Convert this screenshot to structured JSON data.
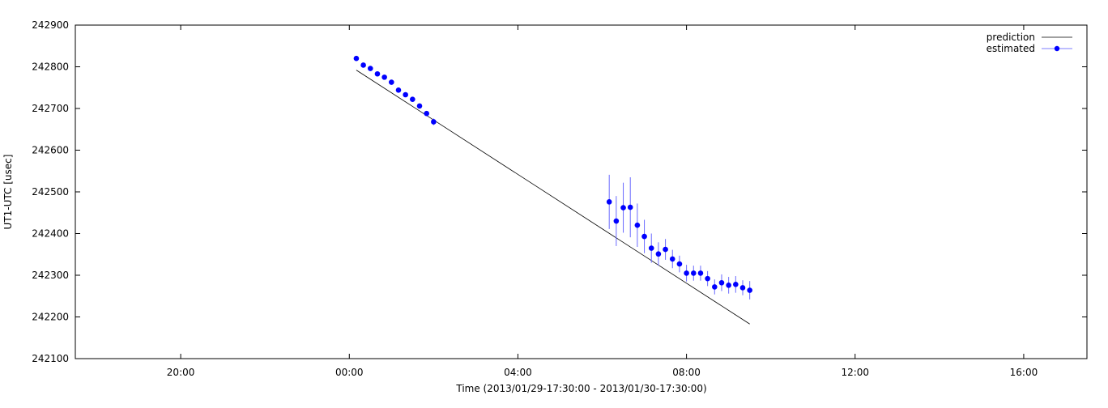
{
  "chart_data": {
    "type": "scatter",
    "title": "",
    "xlabel": "Time (2013/01/29-17:30:00 - 2013/01/30-17:30:00)",
    "ylabel": "UT1-UTC [usec]",
    "xlim": [
      "2013-01-29T17:30",
      "2013-01-30T17:30"
    ],
    "ylim": [
      242100,
      242900
    ],
    "x_ticks": [
      {
        "time": "2013-01-29T20:00",
        "label": "20:00"
      },
      {
        "time": "2013-01-30T00:00",
        "label": "00:00"
      },
      {
        "time": "2013-01-30T04:00",
        "label": "04:00"
      },
      {
        "time": "2013-01-30T08:00",
        "label": "08:00"
      },
      {
        "time": "2013-01-30T12:00",
        "label": "12:00"
      },
      {
        "time": "2013-01-30T16:00",
        "label": "16:00"
      }
    ],
    "y_ticks": [
      242100,
      242200,
      242300,
      242400,
      242500,
      242600,
      242700,
      242800,
      242900
    ],
    "grid": false,
    "legend": {
      "position": "top-right",
      "entries": [
        "prediction",
        "estimated"
      ]
    },
    "series": [
      {
        "name": "prediction",
        "style": "line",
        "color": "#000000",
        "points": [
          {
            "x": "2013-01-30T00:10",
            "y": 242792
          },
          {
            "x": "2013-01-30T09:30",
            "y": 242183
          }
        ]
      },
      {
        "name": "estimated",
        "style": "points-errorbars",
        "color": "#0000ff",
        "points": [
          {
            "x": "2013-01-30T00:10",
            "y": 242820,
            "err": 5
          },
          {
            "x": "2013-01-30T00:20",
            "y": 242804,
            "err": 5
          },
          {
            "x": "2013-01-30T00:30",
            "y": 242796,
            "err": 5
          },
          {
            "x": "2013-01-30T00:40",
            "y": 242783,
            "err": 5
          },
          {
            "x": "2013-01-30T00:50",
            "y": 242775,
            "err": 5
          },
          {
            "x": "2013-01-30T01:00",
            "y": 242763,
            "err": 6
          },
          {
            "x": "2013-01-30T01:10",
            "y": 242744,
            "err": 6
          },
          {
            "x": "2013-01-30T01:20",
            "y": 242733,
            "err": 6
          },
          {
            "x": "2013-01-30T01:30",
            "y": 242722,
            "err": 6
          },
          {
            "x": "2013-01-30T01:40",
            "y": 242706,
            "err": 6
          },
          {
            "x": "2013-01-30T01:50",
            "y": 242688,
            "err": 6
          },
          {
            "x": "2013-01-30T02:00",
            "y": 242668,
            "err": 8
          },
          {
            "x": "2013-01-30T06:10",
            "y": 242476,
            "err": 65
          },
          {
            "x": "2013-01-30T06:20",
            "y": 242430,
            "err": 60
          },
          {
            "x": "2013-01-30T06:30",
            "y": 242462,
            "err": 60
          },
          {
            "x": "2013-01-30T06:40",
            "y": 242463,
            "err": 72
          },
          {
            "x": "2013-01-30T06:50",
            "y": 242420,
            "err": 52
          },
          {
            "x": "2013-01-30T07:00",
            "y": 242393,
            "err": 40
          },
          {
            "x": "2013-01-30T07:10",
            "y": 242365,
            "err": 35
          },
          {
            "x": "2013-01-30T07:20",
            "y": 242351,
            "err": 28
          },
          {
            "x": "2013-01-30T07:30",
            "y": 242362,
            "err": 25
          },
          {
            "x": "2013-01-30T07:40",
            "y": 242339,
            "err": 22
          },
          {
            "x": "2013-01-30T07:50",
            "y": 242327,
            "err": 20
          },
          {
            "x": "2013-01-30T08:00",
            "y": 242305,
            "err": 20
          },
          {
            "x": "2013-01-30T08:10",
            "y": 242305,
            "err": 18
          },
          {
            "x": "2013-01-30T08:20",
            "y": 242305,
            "err": 18
          },
          {
            "x": "2013-01-30T08:30",
            "y": 242292,
            "err": 18
          },
          {
            "x": "2013-01-30T08:40",
            "y": 242272,
            "err": 18
          },
          {
            "x": "2013-01-30T08:50",
            "y": 242282,
            "err": 20
          },
          {
            "x": "2013-01-30T09:00",
            "y": 242276,
            "err": 20
          },
          {
            "x": "2013-01-30T09:10",
            "y": 242278,
            "err": 20
          },
          {
            "x": "2013-01-30T09:20",
            "y": 242270,
            "err": 18
          },
          {
            "x": "2013-01-30T09:30",
            "y": 242264,
            "err": 22
          }
        ]
      }
    ]
  }
}
